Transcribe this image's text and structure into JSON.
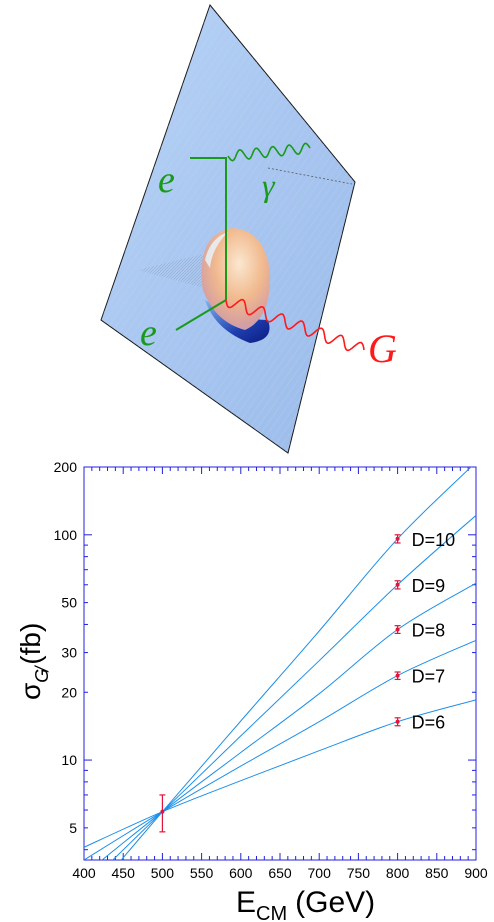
{
  "diagram": {
    "labels": {
      "e_top": "e",
      "photon": "γ",
      "e_bottom": "e",
      "graviton": "G"
    },
    "colors": {
      "plane": "#a9c8f0",
      "electron": "#1a9a1a",
      "photon": "#1a9a1a",
      "graviton": "#ff1a1a"
    }
  },
  "chart_data": {
    "type": "line",
    "x_axis": {
      "label_main": "E",
      "label_sub": "CM",
      "label_unit": "(GeV)",
      "range": [
        400,
        900
      ],
      "ticks": [
        400,
        450,
        500,
        550,
        600,
        650,
        700,
        750,
        800,
        850,
        900
      ]
    },
    "y_axis": {
      "label_main": "σ",
      "label_sub": "G̸",
      "label_unit": "(fb)",
      "scale": "log",
      "range": [
        3.6,
        200
      ],
      "ticks": [
        5,
        10,
        20,
        30,
        50,
        100,
        200
      ]
    },
    "series": [
      {
        "name": "D=10",
        "x": [
          400,
          500,
          600,
          700,
          800,
          900
        ],
        "y": [
          2.3,
          5.9,
          14.9,
          37.4,
          96,
          210
        ]
      },
      {
        "name": "D=9",
        "x": [
          400,
          500,
          600,
          700,
          800,
          900
        ],
        "y": [
          2.7,
          5.9,
          12.8,
          27.6,
          60,
          122
        ]
      },
      {
        "name": "D=8",
        "x": [
          400,
          500,
          600,
          700,
          800,
          900
        ],
        "y": [
          3.1,
          5.9,
          10.8,
          19.7,
          38,
          61
        ]
      },
      {
        "name": "D=7",
        "x": [
          400,
          500,
          600,
          700,
          800,
          900
        ],
        "y": [
          3.6,
          5.9,
          9.4,
          14.8,
          23.7,
          34
        ]
      },
      {
        "name": "D=6",
        "x": [
          400,
          500,
          600,
          700,
          800,
          900
        ],
        "y": [
          4.1,
          5.9,
          8.1,
          11.0,
          14.8,
          18.5
        ]
      }
    ],
    "points": [
      {
        "x": 500,
        "y": 5.9,
        "err_low": 4.8,
        "err_high": 7.0
      },
      {
        "x": 800,
        "y": 96,
        "err_low": 92,
        "err_high": 100
      },
      {
        "x": 800,
        "y": 60,
        "err_low": 57.5,
        "err_high": 62.5
      },
      {
        "x": 800,
        "y": 38,
        "err_low": 36.5,
        "err_high": 39.5
      },
      {
        "x": 800,
        "y": 23.7,
        "err_low": 22.8,
        "err_high": 24.6
      },
      {
        "x": 800,
        "y": 14.8,
        "err_low": 14.2,
        "err_high": 15.4
      }
    ],
    "colors": {
      "line": "#1e8fe8",
      "point": "#e0143c",
      "frame": "#2020e0"
    },
    "grid": false
  }
}
